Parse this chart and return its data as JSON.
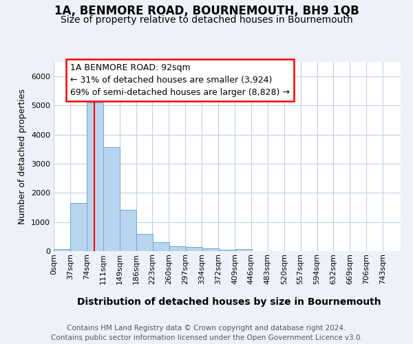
{
  "title": "1A, BENMORE ROAD, BOURNEMOUTH, BH9 1QB",
  "subtitle": "Size of property relative to detached houses in Bournemouth",
  "xlabel": "Distribution of detached houses by size in Bournemouth",
  "ylabel": "Number of detached properties",
  "footer_line1": "Contains HM Land Registry data © Crown copyright and database right 2024.",
  "footer_line2": "Contains public sector information licensed under the Open Government Licence v3.0.",
  "annotation_line1": "1A BENMORE ROAD: 92sqm",
  "annotation_line2": "← 31% of detached houses are smaller (3,924)",
  "annotation_line3": "69% of semi-detached houses are larger (8,828) →",
  "bar_color": "#b8d4ee",
  "bar_edge_color": "#6aaad4",
  "red_line_x": 92,
  "bin_width": 37,
  "bin_starts": [
    0,
    37,
    74,
    111,
    149,
    186,
    223,
    260,
    297,
    334,
    372,
    409,
    446,
    483,
    520,
    557,
    594,
    632,
    669,
    706
  ],
  "bin_heights": [
    75,
    1650,
    5100,
    3575,
    1425,
    600,
    300,
    160,
    145,
    100,
    55,
    60,
    10,
    0,
    0,
    0,
    0,
    0,
    0,
    0
  ],
  "x_tick_labels": [
    "0sqm",
    "37sqm",
    "74sqm",
    "111sqm",
    "149sqm",
    "186sqm",
    "223sqm",
    "260sqm",
    "297sqm",
    "334sqm",
    "372sqm",
    "409sqm",
    "446sqm",
    "483sqm",
    "520sqm",
    "557sqm",
    "594sqm",
    "632sqm",
    "669sqm",
    "706sqm",
    "743sqm"
  ],
  "ylim": [
    0,
    6500
  ],
  "xlim_left": 0,
  "xlim_right": 780,
  "background_color": "#eef2f8",
  "plot_bg_color": "#ffffff",
  "grid_color": "#c0d0e4",
  "title_fontsize": 12,
  "subtitle_fontsize": 10,
  "xlabel_fontsize": 10,
  "ylabel_fontsize": 9,
  "tick_fontsize": 8,
  "annotation_fontsize": 9,
  "footer_fontsize": 7.5
}
